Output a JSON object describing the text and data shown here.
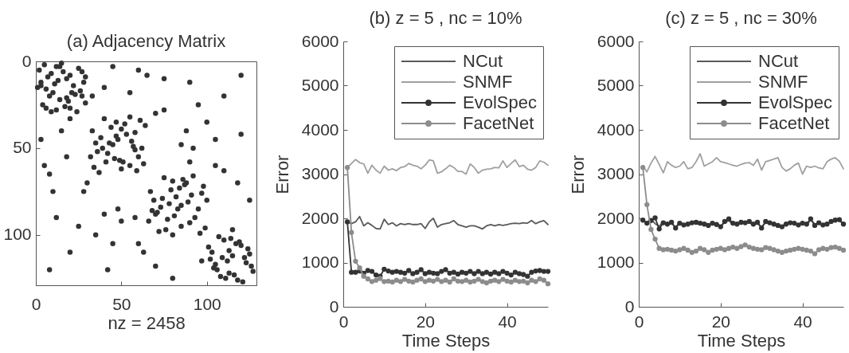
{
  "chart_data": [
    {
      "type": "scatter",
      "title": "(a) Adjacency Matrix",
      "xlabel": "nz = 2458",
      "color": "#333333",
      "marker": "circle",
      "xlim": [
        0,
        129
      ],
      "ylim": [
        129,
        0
      ],
      "xticks": [
        0,
        50,
        100
      ],
      "yticks": [
        0,
        50,
        100
      ],
      "x": [
        2,
        5,
        3,
        12,
        7,
        9,
        10,
        18,
        14,
        22,
        4,
        25,
        16,
        6,
        20,
        27,
        11,
        13,
        24,
        29,
        8,
        20,
        17,
        26,
        1,
        15,
        19,
        23,
        28,
        12,
        33,
        40,
        36,
        52,
        45,
        48,
        41,
        58,
        50,
        62,
        38,
        44,
        55,
        60,
        47,
        35,
        53,
        42,
        57,
        49,
        34,
        61,
        46,
        56,
        39,
        50,
        59,
        63,
        67,
        75,
        70,
        88,
        78,
        82,
        85,
        95,
        72,
        98,
        90,
        93,
        80,
        69,
        77,
        91,
        84,
        73,
        96,
        99,
        68,
        86,
        81,
        89,
        74,
        79,
        103,
        110,
        106,
        120,
        112,
        115,
        118,
        126,
        108,
        124,
        114,
        102,
        121,
        127,
        105,
        117,
        109,
        113,
        123,
        116,
        5,
        60,
        12,
        90,
        20,
        110,
        28,
        75,
        35,
        100,
        42,
        120,
        48,
        85,
        55,
        18,
        63,
        110,
        70,
        30,
        80,
        125,
        92,
        50,
        97,
        115,
        15,
        40,
        25,
        95,
        8,
        120,
        65,
        8,
        105,
        60,
        88,
        40,
        3,
        45,
        6,
        27,
        14,
        3,
        21,
        18,
        9,
        29,
        32,
        55,
        43,
        47,
        51,
        58,
        37,
        64,
        66,
        92,
        83,
        85,
        76,
        97,
        87,
        71,
        101,
        107,
        111,
        125,
        119,
        104,
        122,
        113,
        10,
        75,
        33,
        20,
        58,
        90,
        45,
        105,
        70,
        118,
        100,
        80
      ],
      "values": [
        5,
        2,
        12,
        3,
        9,
        7,
        18,
        10,
        22,
        14,
        25,
        4,
        6,
        16,
        27,
        20,
        13,
        11,
        29,
        24,
        20,
        8,
        26,
        17,
        15,
        1,
        23,
        19,
        12,
        28,
        40,
        33,
        52,
        36,
        48,
        45,
        58,
        41,
        62,
        50,
        44,
        38,
        60,
        55,
        35,
        47,
        42,
        53,
        49,
        57,
        61,
        34,
        56,
        46,
        50,
        39,
        63,
        59,
        75,
        67,
        88,
        70,
        82,
        78,
        95,
        85,
        98,
        72,
        93,
        90,
        69,
        80,
        91,
        77,
        73,
        84,
        99,
        96,
        86,
        68,
        89,
        81,
        79,
        74,
        110,
        103,
        120,
        106,
        115,
        112,
        126,
        118,
        124,
        108,
        102,
        114,
        127,
        121,
        117,
        105,
        113,
        109,
        116,
        123,
        60,
        5,
        90,
        12,
        110,
        20,
        75,
        28,
        100,
        35,
        120,
        42,
        85,
        48,
        18,
        55,
        110,
        63,
        30,
        70,
        125,
        80,
        50,
        92,
        115,
        97,
        40,
        15,
        95,
        25,
        120,
        8,
        8,
        65,
        60,
        105,
        40,
        88,
        45,
        3,
        27,
        6,
        3,
        14,
        18,
        21,
        29,
        9,
        55,
        32,
        47,
        43,
        58,
        51,
        64,
        37,
        92,
        66,
        85,
        83,
        97,
        76,
        71,
        87,
        107,
        101,
        125,
        111,
        104,
        119,
        113,
        122,
        75,
        10,
        20,
        33,
        90,
        58,
        105,
        45,
        118,
        70,
        80,
        100
      ]
    },
    {
      "type": "line",
      "title": "(b) z = 5 , nc = 10%",
      "xlabel": "Time Steps",
      "ylabel": "Error",
      "xlim": [
        0,
        50
      ],
      "ylim": [
        0,
        6000
      ],
      "xticks": [
        0,
        20,
        40
      ],
      "yticks": [
        0,
        1000,
        2000,
        3000,
        4000,
        5000,
        6000
      ],
      "legend": "top right",
      "x": [
        1,
        2,
        3,
        4,
        5,
        6,
        7,
        8,
        9,
        10,
        11,
        12,
        13,
        14,
        15,
        16,
        17,
        18,
        19,
        20,
        21,
        22,
        23,
        24,
        25,
        26,
        27,
        28,
        29,
        30,
        31,
        32,
        33,
        34,
        35,
        36,
        37,
        38,
        39,
        40,
        41,
        42,
        43,
        44,
        45,
        46,
        47,
        48,
        49,
        50
      ],
      "series": [
        {
          "name": "NCut",
          "color": "#5a5a5a",
          "marker": "none",
          "values": [
            1920,
            1880,
            1920,
            2040,
            1830,
            1900,
            1840,
            1770,
            1760,
            1980,
            1860,
            1900,
            1830,
            1880,
            1860,
            1880,
            1860,
            1860,
            1880,
            1770,
            1920,
            2000,
            1800,
            1860,
            1880,
            1900,
            1950,
            1860,
            1830,
            1800,
            1830,
            1830,
            1800,
            1760,
            1830,
            1860,
            1830,
            1860,
            1840,
            1860,
            1880,
            1890,
            1880,
            1900,
            1890,
            1950,
            1880,
            1920,
            1950,
            1860
          ]
        },
        {
          "name": "SNMF",
          "color": "#a0a0a0",
          "marker": "none",
          "values": [
            3150,
            3240,
            3330,
            3260,
            3230,
            3020,
            3200,
            3090,
            3020,
            3180,
            3090,
            3120,
            3080,
            3150,
            3170,
            3240,
            3200,
            3180,
            3120,
            3200,
            3320,
            3300,
            3020,
            3050,
            3120,
            3200,
            3150,
            3060,
            3060,
            3000,
            3230,
            3150,
            3020,
            3090,
            3110,
            3120,
            3150,
            3140,
            3300,
            3150,
            3240,
            3320,
            3170,
            3200,
            3110,
            3090,
            3150,
            3300,
            3270,
            3200
          ]
        },
        {
          "name": "EvolSpec",
          "color": "#333333",
          "marker": "circle",
          "values": [
            1920,
            780,
            780,
            810,
            760,
            820,
            800,
            720,
            690,
            850,
            810,
            780,
            800,
            780,
            760,
            820,
            750,
            780,
            840,
            750,
            780,
            760,
            750,
            800,
            840,
            760,
            780,
            740,
            780,
            760,
            800,
            750,
            800,
            750,
            780,
            740,
            780,
            750,
            800,
            760,
            720,
            780,
            750,
            730,
            690,
            780,
            810,
            820,
            800,
            800
          ]
        },
        {
          "name": "FacetNet",
          "color": "#8c8c8c",
          "marker": "circle",
          "values": [
            3150,
            1680,
            1030,
            880,
            690,
            630,
            570,
            600,
            640,
            570,
            580,
            560,
            600,
            570,
            620,
            580,
            560,
            600,
            630,
            570,
            600,
            580,
            620,
            570,
            600,
            560,
            630,
            580,
            570,
            600,
            560,
            580,
            620,
            570,
            540,
            580,
            600,
            570,
            620,
            580,
            560,
            600,
            570,
            580,
            540,
            600,
            570,
            630,
            600,
            520
          ]
        }
      ]
    },
    {
      "type": "line",
      "title": "(c) z = 5 , nc = 30%",
      "xlabel": "Time Steps",
      "ylabel": "Error",
      "xlim": [
        0,
        50
      ],
      "ylim": [
        0,
        6000
      ],
      "xticks": [
        0,
        20,
        40
      ],
      "yticks": [
        0,
        1000,
        2000,
        3000,
        4000,
        5000,
        6000
      ],
      "legend": "top right",
      "x": [
        1,
        2,
        3,
        4,
        5,
        6,
        7,
        8,
        9,
        10,
        11,
        12,
        13,
        14,
        15,
        16,
        17,
        18,
        19,
        20,
        21,
        22,
        23,
        24,
        25,
        26,
        27,
        28,
        29,
        30,
        31,
        32,
        33,
        34,
        35,
        36,
        37,
        38,
        39,
        40,
        41,
        42,
        43,
        44,
        45,
        46,
        47,
        48,
        49,
        50
      ],
      "series": [
        {
          "name": "NCut",
          "color": "#5a5a5a",
          "marker": "none",
          "values": [
            1940,
            1900,
            1980,
            1880,
            1820,
            1930,
            1850,
            1890,
            1800,
            1910,
            1870,
            1840,
            1920,
            1880,
            1860,
            1900,
            1870,
            1850,
            1890,
            1830,
            1900,
            1950,
            1860,
            1890,
            1880,
            1920,
            1900,
            1850,
            1880,
            1810,
            1900,
            1880,
            1890,
            1860,
            1830,
            1880,
            1920,
            1870,
            1870,
            1900,
            1850,
            1960,
            1870,
            1880,
            1870,
            1890,
            1910,
            1990,
            1940,
            1880
          ]
        },
        {
          "name": "SNMF",
          "color": "#a0a0a0",
          "marker": "none",
          "values": [
            3180,
            3050,
            3250,
            3400,
            3220,
            3030,
            3280,
            3200,
            3150,
            3180,
            3280,
            3120,
            3150,
            3280,
            3460,
            3180,
            3230,
            3280,
            3370,
            3280,
            3260,
            3230,
            3200,
            3180,
            3220,
            3250,
            3260,
            3200,
            3340,
            3090,
            3280,
            3310,
            3340,
            3370,
            3150,
            3070,
            3120,
            3200,
            3250,
            3000,
            3180,
            3150,
            3180,
            3140,
            3120,
            3280,
            3340,
            3370,
            3290,
            3120
          ]
        },
        {
          "name": "EvolSpec",
          "color": "#333333",
          "marker": "circle",
          "values": [
            1960,
            1890,
            1950,
            2010,
            1760,
            1900,
            1870,
            1910,
            1780,
            1890,
            1850,
            1870,
            1900,
            1910,
            1890,
            1870,
            1840,
            1890,
            1860,
            1810,
            1930,
            1990,
            1890,
            1870,
            1910,
            1900,
            1930,
            1870,
            1910,
            1780,
            1930,
            1900,
            1870,
            1840,
            1810,
            1870,
            1900,
            1890,
            1850,
            1890,
            1870,
            1990,
            1840,
            1900,
            1850,
            1870,
            1930,
            1960,
            1970,
            1870
          ]
        },
        {
          "name": "FacetNet",
          "color": "#8c8c8c",
          "marker": "circle",
          "values": [
            3150,
            2310,
            1750,
            1530,
            1320,
            1290,
            1300,
            1280,
            1260,
            1290,
            1320,
            1280,
            1230,
            1260,
            1320,
            1290,
            1230,
            1280,
            1300,
            1320,
            1290,
            1320,
            1350,
            1320,
            1360,
            1400,
            1350,
            1320,
            1300,
            1290,
            1340,
            1320,
            1290,
            1260,
            1230,
            1260,
            1280,
            1300,
            1320,
            1300,
            1280,
            1260,
            1200,
            1290,
            1320,
            1300,
            1340,
            1350,
            1320,
            1280
          ]
        }
      ]
    }
  ]
}
